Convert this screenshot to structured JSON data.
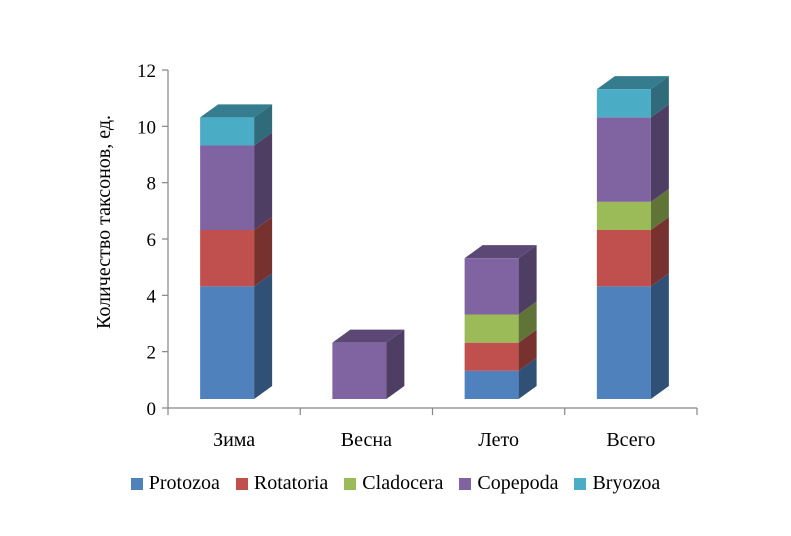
{
  "chart_data": {
    "type": "bar",
    "stacked": true,
    "three_d": true,
    "categories": [
      "Зима",
      "Весна",
      "Лето",
      "Всего"
    ],
    "series": [
      {
        "name": "Protozoa",
        "color": "#4f81bd",
        "values": [
          4,
          0,
          1,
          4
        ]
      },
      {
        "name": "Rotatoria",
        "color": "#c0504d",
        "values": [
          2,
          0,
          1,
          2
        ]
      },
      {
        "name": "Cladocera",
        "color": "#9bbb59",
        "values": [
          0,
          0,
          1,
          1
        ]
      },
      {
        "name": "Copepoda",
        "color": "#8064a2",
        "values": [
          3,
          2,
          2,
          3
        ]
      },
      {
        "name": "Bryozoa",
        "color": "#4bacc6",
        "values": [
          1,
          0,
          0,
          1
        ]
      }
    ],
    "ylabel": "Количество таксонов, ед.",
    "xlabel": "",
    "ylim": [
      0,
      12
    ],
    "yticks": [
      0,
      2,
      4,
      6,
      8,
      10,
      12
    ],
    "grid": false,
    "legend_position": "bottom"
  }
}
